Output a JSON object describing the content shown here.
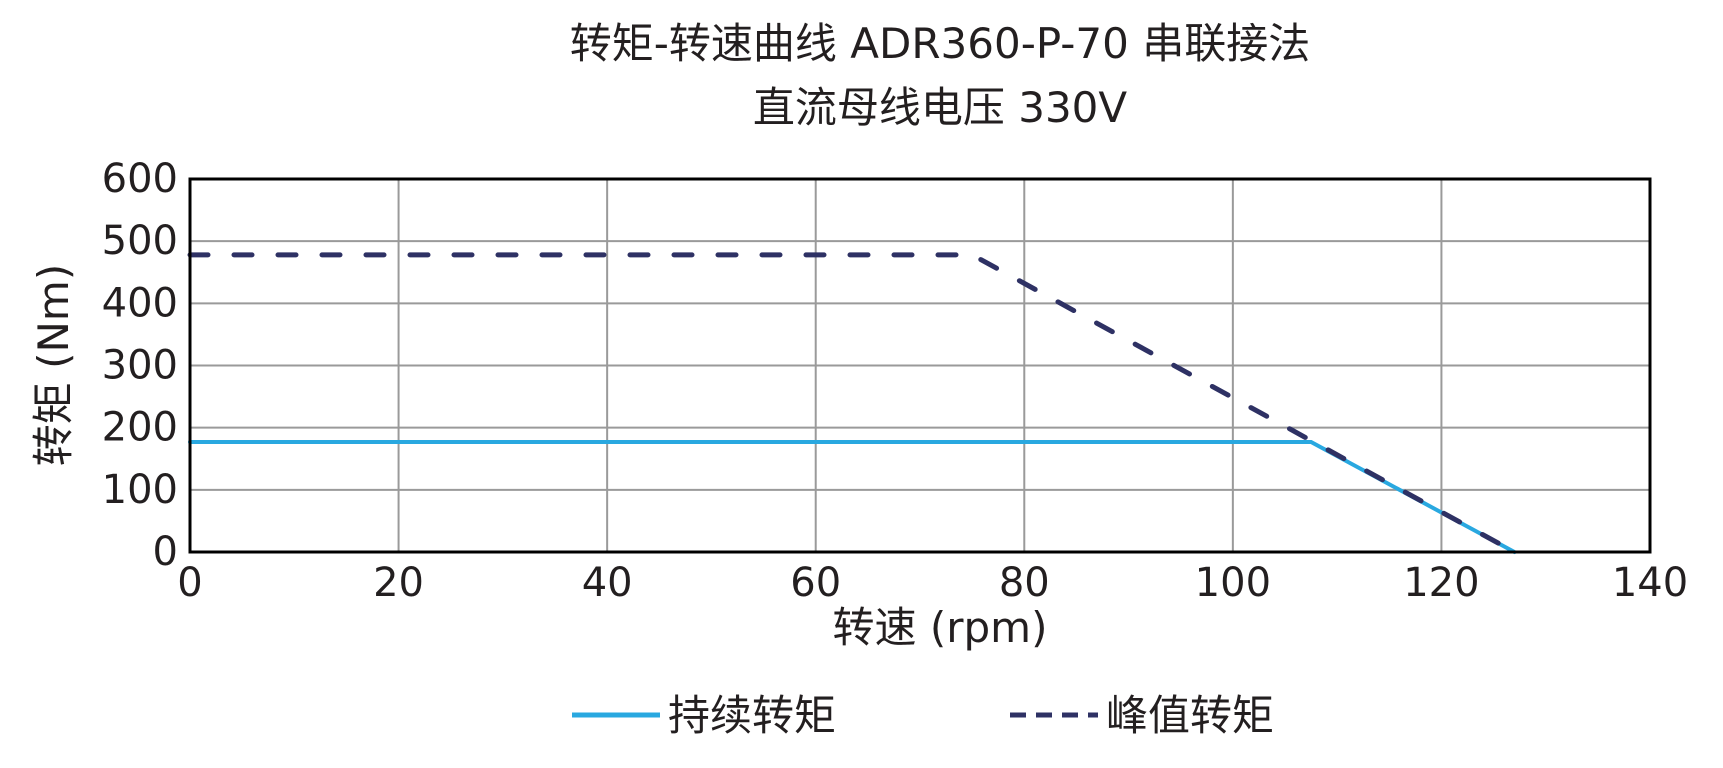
{
  "chart_data": {
    "type": "line",
    "title": "转矩-转速曲线 ADR360-P-70 串联接法",
    "subtitle": "直流母线电压 330V",
    "xlabel": "转速 (rpm)",
    "ylabel": "转矩 (Nm)",
    "xlim": [
      0,
      140
    ],
    "ylim": [
      0,
      600
    ],
    "xticks": [
      "0",
      "20",
      "40",
      "60",
      "80",
      "100",
      "120",
      "140"
    ],
    "yticks": [
      "0",
      "100",
      "200",
      "300",
      "400",
      "500",
      "600"
    ],
    "grid": true,
    "legend_position": "bottom",
    "series": [
      {
        "name": "持续转矩",
        "color": "#29a8e0",
        "style": "solid",
        "x": [
          0,
          107.5,
          127
        ],
        "y": [
          177,
          177,
          0
        ]
      },
      {
        "name": "峰值转矩",
        "color": "#2e3164",
        "style": "dashed",
        "x": [
          0,
          75,
          127
        ],
        "y": [
          478,
          478,
          0
        ]
      }
    ]
  }
}
